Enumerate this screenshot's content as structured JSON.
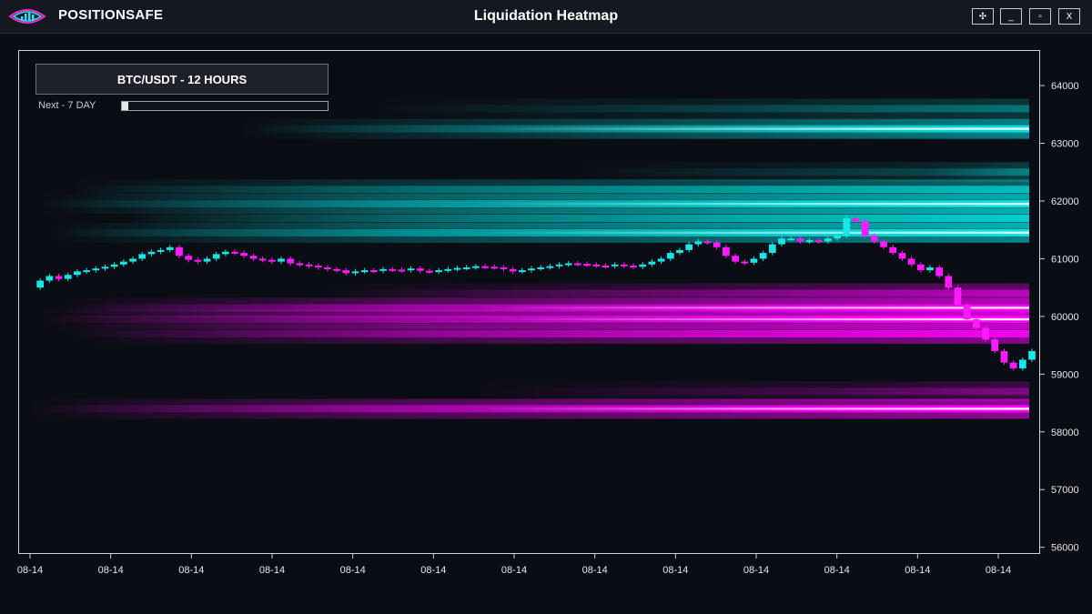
{
  "header": {
    "brand": "POSITIONSAFE",
    "title": "Liquidation Heatmap",
    "buttons": {
      "move": "✣",
      "minimize": "_",
      "maximize": "▫",
      "close": "X"
    }
  },
  "controls": {
    "pair_label": "BTC/USDT - 12 HOURS",
    "range_label": "Next - 7 DAY",
    "range_position": 0.0
  },
  "colors": {
    "long_liquidation": "#00e5e5",
    "short_liquidation": "#ff00ff",
    "up_candle": "#19e6e6",
    "down_candle": "#ff1aff",
    "background": "#0b0d14"
  },
  "chart_data": {
    "type": "heatmap",
    "title": "Liquidation Heatmap",
    "ylim": [
      55900,
      64600
    ],
    "y_ticks": [
      56000,
      57000,
      58000,
      59000,
      60000,
      61000,
      62000,
      63000,
      64000
    ],
    "x_tick_labels": [
      "08-14",
      "08-14",
      "08-14",
      "08-14",
      "08-14",
      "08-14",
      "08-14",
      "08-14",
      "08-14",
      "08-14",
      "08-14",
      "08-14",
      "08-14"
    ],
    "liquidation_bands": [
      {
        "side": "long",
        "price": 63600,
        "intensity": 0.35,
        "start": 0.35
      },
      {
        "side": "long",
        "price": 63250,
        "intensity": 0.95,
        "start": 0.22
      },
      {
        "side": "long",
        "price": 62500,
        "intensity": 0.4,
        "start": 0.55
      },
      {
        "side": "long",
        "price": 62200,
        "intensity": 0.7,
        "start": 0.05
      },
      {
        "side": "long",
        "price": 61950,
        "intensity": 1.0,
        "start": 0.02
      },
      {
        "side": "long",
        "price": 61700,
        "intensity": 0.8,
        "start": 0.1
      },
      {
        "side": "long",
        "price": 61450,
        "intensity": 1.0,
        "start": 0.03
      },
      {
        "side": "short",
        "price": 60400,
        "intensity": 0.6,
        "start": 0.3
      },
      {
        "side": "short",
        "price": 60150,
        "intensity": 1.0,
        "start": 0.04
      },
      {
        "side": "short",
        "price": 59950,
        "intensity": 1.0,
        "start": 0.02
      },
      {
        "side": "short",
        "price": 59700,
        "intensity": 0.9,
        "start": 0.05
      },
      {
        "side": "short",
        "price": 58700,
        "intensity": 0.35,
        "start": 0.45
      },
      {
        "side": "short",
        "price": 58400,
        "intensity": 1.0,
        "start": 0.01
      }
    ],
    "price_series": [
      60500,
      60620,
      60700,
      60650,
      60720,
      60780,
      60800,
      60830,
      60860,
      60900,
      60950,
      61000,
      61080,
      61120,
      61150,
      61200,
      61050,
      60980,
      60950,
      61000,
      61080,
      61120,
      61100,
      61050,
      61000,
      60980,
      60950,
      61000,
      60920,
      60900,
      60880,
      60850,
      60820,
      60800,
      60750,
      60780,
      60800,
      60790,
      60820,
      60810,
      60800,
      60830,
      60790,
      60780,
      60800,
      60820,
      60840,
      60850,
      60870,
      60860,
      60850,
      60820,
      60780,
      60800,
      60830,
      60850,
      60870,
      60900,
      60920,
      60910,
      60900,
      60880,
      60870,
      60900,
      60880,
      60860,
      60900,
      60950,
      61000,
      61100,
      61150,
      61250,
      61300,
      61280,
      61200,
      61050,
      60950,
      60930,
      61000,
      61100,
      61250,
      61350,
      61350,
      61300,
      61320,
      61300,
      61350,
      61400,
      61700,
      61650,
      61400,
      61300,
      61200,
      61100,
      61000,
      60900,
      60800,
      60850,
      60700,
      60500,
      60200,
      59950,
      59800,
      59600,
      59400,
      59200,
      59100,
      59250,
      59400
    ]
  }
}
